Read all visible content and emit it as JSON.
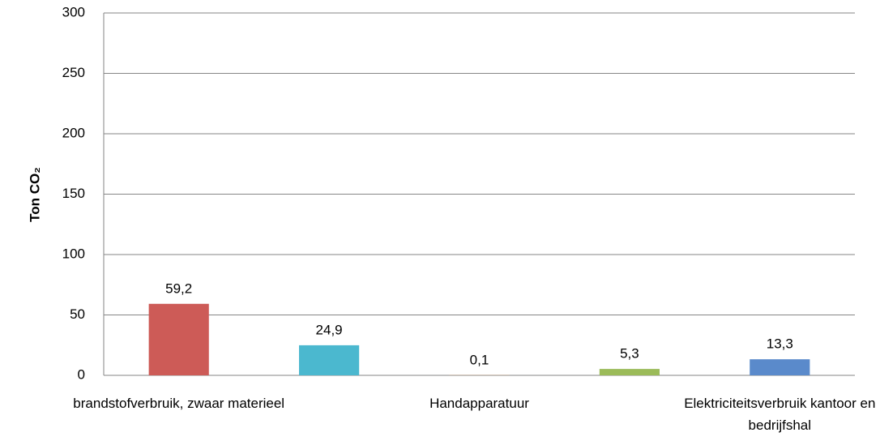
{
  "chart_data": {
    "type": "bar",
    "y_label": "Ton CO₂",
    "categories": [
      "brandstofverbruik, zwaar materieel",
      null,
      "Handapparatuur",
      null,
      "Elektriciteitsverbruik kantoor en bedrijfshal"
    ],
    "values": [
      59.2,
      24.9,
      0.1,
      5.3,
      13.3
    ],
    "value_labels": [
      "59,2",
      "24,9",
      "0,1",
      "5,3",
      "13,3"
    ],
    "colors": [
      "#cd5b57",
      "#4bb8cf",
      "#f79646",
      "#9bbb59",
      "#5a8acb"
    ],
    "ylim": [
      0,
      300
    ],
    "yticks": [
      0,
      50,
      100,
      150,
      200,
      250,
      300
    ],
    "grid": true
  }
}
